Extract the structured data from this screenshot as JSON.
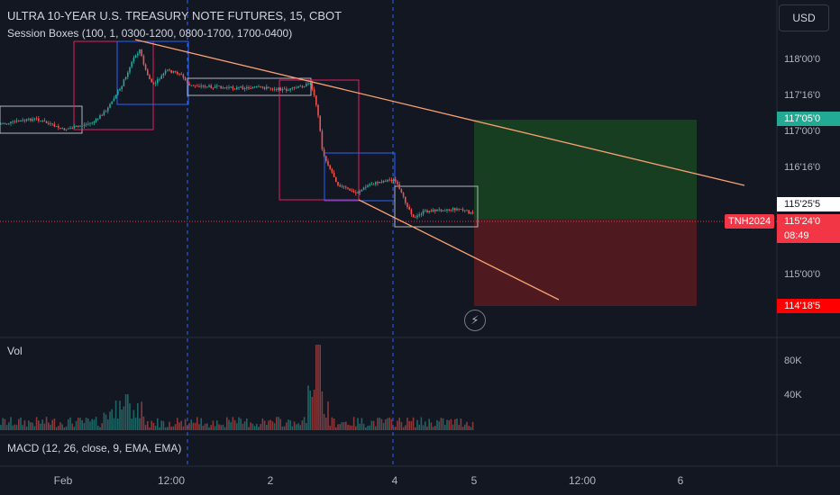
{
  "instrument": {
    "title": "ULTRA 10-YEAR U.S. TREASURY NOTE FUTURES, 15, CBOT",
    "indicator": "Session Boxes (100, 1, 0300-1200, 0800-1700, 1700-0400)",
    "symbol": "TNH2024"
  },
  "currency": "USD",
  "price_axis": {
    "ticks": [
      "118'00'0",
      "117'16'0",
      "117'00'0",
      "116'16'0",
      "115'00'0"
    ],
    "target_label": "117'05'0",
    "target_color": "#22ab94",
    "entry_label": "115'25'5",
    "current_label": "115'24'0",
    "countdown": "08:49",
    "current_color": "#f23645",
    "stop_label": "114'18'5",
    "stop_color": "#ff0000"
  },
  "volume_pane": {
    "label": "Vol",
    "ticks": [
      "80K",
      "40K"
    ]
  },
  "macd_pane": {
    "label": "MACD (12, 26, close, 9, EMA, EMA)"
  },
  "time_axis": {
    "labels": [
      "Feb",
      "12:00",
      "2",
      "4",
      "5",
      "12:00",
      "6"
    ]
  },
  "icons": {
    "flash": "lightning-icon"
  },
  "colors": {
    "background": "#131722",
    "up_candle": "#26a69a",
    "down_candle": "#ef5350",
    "session_pink": "#e91e63",
    "session_blue": "#2962ff",
    "session_white": "#b2b5be",
    "trendline": "#f7a072",
    "profit_zone": "#1b5e20",
    "loss_zone": "#7f1d1d",
    "separator": "#2962ff"
  }
}
